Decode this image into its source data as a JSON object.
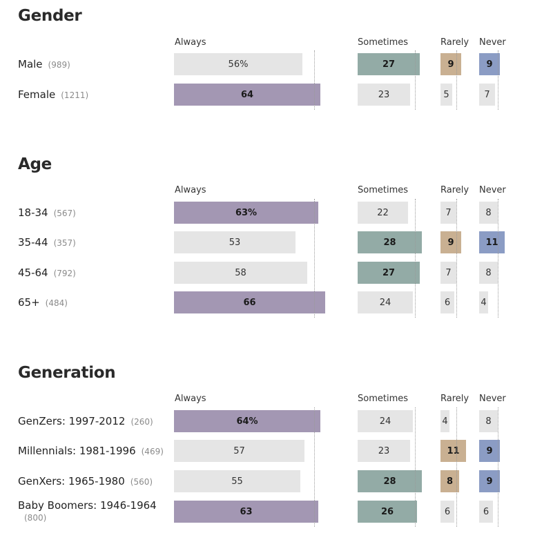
{
  "columns": [
    "Always",
    "Sometimes",
    "Rarely",
    "Never"
  ],
  "colors": {
    "neutral": "#e5e5e5",
    "Always": "#a397b3",
    "Sometimes": "#93aba6",
    "Rarely": "#c9b092",
    "Never": "#8b9cc4"
  },
  "chart_data": [
    {
      "type": "bar",
      "title": "Gender",
      "categories": [
        "Male",
        "Female"
      ],
      "n": [
        "(989)",
        "(1211)"
      ],
      "series": [
        {
          "name": "Always",
          "values": [
            56,
            64
          ],
          "labels": [
            "56%",
            "64"
          ],
          "highlight": [
            false,
            true
          ],
          "reference": 61
        },
        {
          "name": "Sometimes",
          "values": [
            27,
            23
          ],
          "labels": [
            "27",
            "23"
          ],
          "highlight": [
            true,
            false
          ],
          "reference": 25
        },
        {
          "name": "Rarely",
          "values": [
            9,
            5
          ],
          "labels": [
            "9",
            "5"
          ],
          "highlight": [
            true,
            false
          ],
          "reference": 7
        },
        {
          "name": "Never",
          "values": [
            9,
            7
          ],
          "labels": [
            "9",
            "7"
          ],
          "highlight": [
            true,
            false
          ],
          "reference": 8
        }
      ]
    },
    {
      "type": "bar",
      "title": "Age",
      "categories": [
        "18-34",
        "35-44",
        "45-64",
        "65+"
      ],
      "n": [
        "(567)",
        "(357)",
        "(792)",
        "(484)"
      ],
      "series": [
        {
          "name": "Always",
          "values": [
            63,
            53,
            58,
            66
          ],
          "labels": [
            "63%",
            "53",
            "58",
            "66"
          ],
          "highlight": [
            true,
            false,
            false,
            true
          ],
          "reference": 61
        },
        {
          "name": "Sometimes",
          "values": [
            22,
            28,
            27,
            24
          ],
          "labels": [
            "22",
            "28",
            "27",
            "24"
          ],
          "highlight": [
            false,
            true,
            true,
            false
          ],
          "reference": 25
        },
        {
          "name": "Rarely",
          "values": [
            7,
            9,
            7,
            6
          ],
          "labels": [
            "7",
            "9",
            "7",
            "6"
          ],
          "highlight": [
            false,
            true,
            false,
            false
          ],
          "reference": 7
        },
        {
          "name": "Never",
          "values": [
            8,
            11,
            8,
            4
          ],
          "labels": [
            "8",
            "11",
            "8",
            "4"
          ],
          "highlight": [
            false,
            true,
            false,
            false
          ],
          "reference": 8
        }
      ]
    },
    {
      "type": "bar",
      "title": "Generation",
      "categories": [
        "GenZers: 1997-2012",
        "Millennials: 1981-1996",
        "GenXers: 1965-1980",
        "Baby Boomers: 1946-1964"
      ],
      "n": [
        "(260)",
        "(469)",
        "(560)",
        "(800)"
      ],
      "series": [
        {
          "name": "Always",
          "values": [
            64,
            57,
            55,
            63
          ],
          "labels": [
            "64%",
            "57",
            "55",
            "63"
          ],
          "highlight": [
            true,
            false,
            false,
            true
          ],
          "reference": 61
        },
        {
          "name": "Sometimes",
          "values": [
            24,
            23,
            28,
            26
          ],
          "labels": [
            "24",
            "23",
            "28",
            "26"
          ],
          "highlight": [
            false,
            false,
            true,
            true
          ],
          "reference": 25
        },
        {
          "name": "Rarely",
          "values": [
            4,
            11,
            8,
            6
          ],
          "labels": [
            "4",
            "11",
            "8",
            "6"
          ],
          "highlight": [
            false,
            true,
            true,
            false
          ],
          "reference": 7
        },
        {
          "name": "Never",
          "values": [
            8,
            9,
            9,
            6
          ],
          "labels": [
            "8",
            "9",
            "9",
            "6"
          ],
          "highlight": [
            false,
            true,
            true,
            false
          ],
          "reference": 8
        }
      ]
    }
  ]
}
